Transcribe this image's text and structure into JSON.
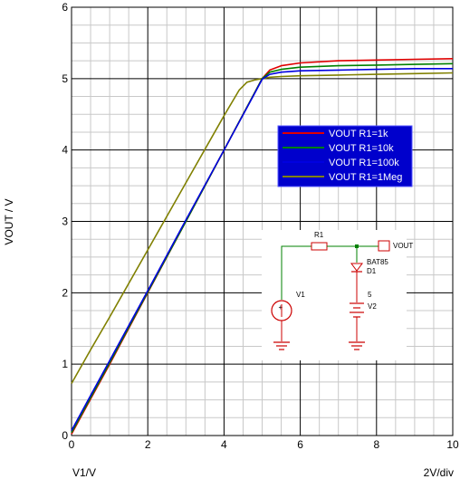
{
  "chart_data": {
    "type": "line",
    "xlabel": "V1/V",
    "ylabel": "VOUT / V",
    "x_scale_note": "2V/div",
    "xlim": [
      0,
      10
    ],
    "ylim": [
      0,
      6
    ],
    "x_ticks": [
      "0",
      "2",
      "4",
      "6",
      "8",
      "10"
    ],
    "y_ticks": [
      "0",
      "1",
      "2",
      "3",
      "4",
      "5",
      "6"
    ],
    "grid": true,
    "legend_position": "upper-right",
    "series": [
      {
        "name": "VOUT R1=1k",
        "color": "#e00000",
        "x": [
          0,
          0.5,
          1,
          2,
          3,
          4,
          4.8,
          5.0,
          5.2,
          5.5,
          6,
          7,
          8,
          9,
          10
        ],
        "y": [
          0.02,
          0.51,
          1.0,
          2.0,
          3.0,
          4.0,
          4.8,
          5.0,
          5.12,
          5.18,
          5.22,
          5.25,
          5.26,
          5.27,
          5.28
        ]
      },
      {
        "name": "VOUT R1=10k",
        "color": "#008000",
        "x": [
          0,
          0.5,
          1,
          2,
          3,
          4,
          4.8,
          5.0,
          5.2,
          5.5,
          6,
          7,
          8,
          9,
          10
        ],
        "y": [
          0.04,
          0.53,
          1.02,
          2.01,
          3.0,
          4.0,
          4.8,
          5.0,
          5.09,
          5.13,
          5.16,
          5.18,
          5.19,
          5.2,
          5.21
        ]
      },
      {
        "name": "VOUT R1=100k",
        "color": "#0000e0",
        "x": [
          0,
          0.5,
          1,
          2,
          3,
          4,
          4.8,
          5.0,
          5.2,
          5.5,
          6,
          7,
          8,
          9,
          10
        ],
        "y": [
          0.07,
          0.56,
          1.05,
          2.03,
          3.02,
          4.0,
          4.79,
          4.99,
          5.06,
          5.09,
          5.11,
          5.12,
          5.13,
          5.14,
          5.14
        ]
      },
      {
        "name": "VOUT R1=1Meg",
        "color": "#808000",
        "x": [
          0,
          0.5,
          1,
          2,
          3,
          4,
          4.4,
          4.6,
          4.8,
          5.0,
          5.2,
          5.5,
          6,
          7,
          8,
          9,
          10
        ],
        "y": [
          0.73,
          1.2,
          1.66,
          2.6,
          3.54,
          4.48,
          4.84,
          4.95,
          4.98,
          5.0,
          5.02,
          5.03,
          5.04,
          5.05,
          5.06,
          5.07,
          5.08
        ]
      }
    ]
  },
  "schematic": {
    "r1_label": "R1",
    "vout_label": "VOUT",
    "diode_part": "BAT85",
    "diode_label": "D1",
    "v1_label": "V1",
    "v2_value": "5",
    "v2_label": "V2"
  }
}
